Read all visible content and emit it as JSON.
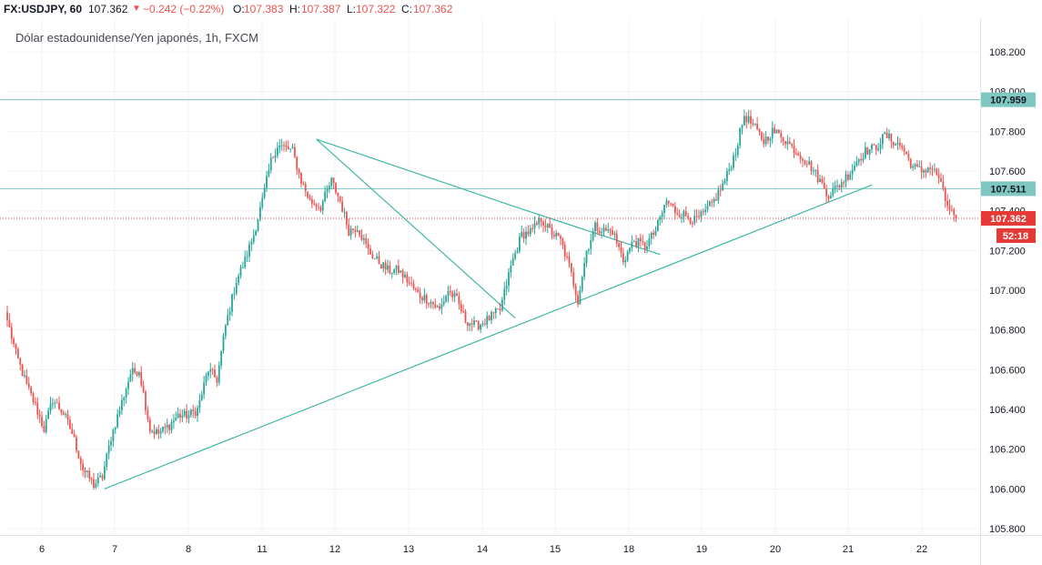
{
  "header": {
    "symbol": "FX:USDJPY, 60",
    "last": "107.362",
    "arrow": "▼",
    "change": "−0.242 (−0.22%)",
    "o_label": "O:",
    "o_value": "107.383",
    "h_label": "H:",
    "h_value": "107.387",
    "l_label": "L:",
    "l_value": "107.322",
    "c_label": "C:",
    "c_value": "107.362"
  },
  "colors": {
    "up": "#26a69a",
    "down": "#ef5350",
    "hline": "#7fc7c1",
    "trend": "#41b6a6",
    "price_line": "#e53935"
  },
  "chart_data": {
    "type": "candlestick",
    "title": "Dólar estadounidense/Yen japonés, 1h, FXCM",
    "x_tick_labels": [
      "6",
      "7",
      "8",
      "11",
      "12",
      "13",
      "14",
      "15",
      "18",
      "19",
      "20",
      "21",
      "22"
    ],
    "y_tick_labels": [
      "105.800",
      "106.000",
      "106.200",
      "106.400",
      "106.600",
      "106.800",
      "107.000",
      "107.200",
      "107.400",
      "107.600",
      "107.800",
      "108.000",
      "108.200"
    ],
    "ylim": [
      105.78,
      108.27
    ],
    "grid": true,
    "close_anchors": [
      [
        0,
        106.85
      ],
      [
        4,
        106.68
      ],
      [
        9,
        106.52
      ],
      [
        13,
        106.42
      ],
      [
        17,
        106.3
      ],
      [
        21,
        106.45
      ],
      [
        26,
        106.38
      ],
      [
        30,
        106.28
      ],
      [
        35,
        106.1
      ],
      [
        40,
        106.02
      ],
      [
        44,
        106.06
      ],
      [
        48,
        106.26
      ],
      [
        52,
        106.4
      ],
      [
        57,
        106.58
      ],
      [
        61,
        106.6
      ],
      [
        66,
        106.3
      ],
      [
        70,
        106.28
      ],
      [
        75,
        106.32
      ],
      [
        79,
        106.37
      ],
      [
        84,
        106.37
      ],
      [
        88,
        106.4
      ],
      [
        93,
        106.6
      ],
      [
        97,
        106.55
      ],
      [
        101,
        106.82
      ],
      [
        106,
        107.05
      ],
      [
        110,
        107.15
      ],
      [
        114,
        107.28
      ],
      [
        118,
        107.45
      ],
      [
        122,
        107.65
      ],
      [
        125,
        107.73
      ],
      [
        128,
        107.72
      ],
      [
        132,
        107.7
      ],
      [
        136,
        107.55
      ],
      [
        140,
        107.45
      ],
      [
        145,
        107.42
      ],
      [
        150,
        107.55
      ],
      [
        154,
        107.45
      ],
      [
        158,
        107.3
      ],
      [
        162,
        107.32
      ],
      [
        167,
        107.2
      ],
      [
        171,
        107.15
      ],
      [
        176,
        107.1
      ],
      [
        181,
        107.1
      ],
      [
        185,
        107.05
      ],
      [
        190,
        106.98
      ],
      [
        195,
        106.95
      ],
      [
        200,
        106.9
      ],
      [
        204,
        107.0
      ],
      [
        208,
        106.95
      ],
      [
        212,
        106.85
      ],
      [
        217,
        106.82
      ],
      [
        222,
        106.85
      ],
      [
        228,
        106.9
      ],
      [
        233,
        107.12
      ],
      [
        238,
        107.28
      ],
      [
        243,
        107.3
      ],
      [
        247,
        107.36
      ],
      [
        251,
        107.3
      ],
      [
        256,
        107.25
      ],
      [
        260,
        107.12
      ],
      [
        264,
        106.95
      ],
      [
        268,
        107.2
      ],
      [
        272,
        107.32
      ],
      [
        276,
        107.3
      ],
      [
        280,
        107.3
      ],
      [
        285,
        107.15
      ],
      [
        290,
        107.25
      ],
      [
        295,
        107.22
      ],
      [
        300,
        107.3
      ],
      [
        305,
        107.45
      ],
      [
        309,
        107.4
      ],
      [
        313,
        107.38
      ],
      [
        318,
        107.35
      ],
      [
        322,
        107.38
      ],
      [
        327,
        107.45
      ],
      [
        332,
        107.55
      ],
      [
        337,
        107.7
      ],
      [
        341,
        107.88
      ],
      [
        345,
        107.83
      ],
      [
        350,
        107.75
      ],
      [
        354,
        107.8
      ],
      [
        358,
        107.78
      ],
      [
        363,
        107.72
      ],
      [
        367,
        107.68
      ],
      [
        372,
        107.62
      ],
      [
        376,
        107.55
      ],
      [
        380,
        107.48
      ],
      [
        384,
        107.52
      ],
      [
        389,
        107.58
      ],
      [
        393,
        107.65
      ],
      [
        397,
        107.7
      ],
      [
        402,
        107.72
      ],
      [
        406,
        107.78
      ],
      [
        410,
        107.75
      ],
      [
        414,
        107.72
      ],
      [
        419,
        107.62
      ],
      [
        423,
        107.6
      ],
      [
        427,
        107.62
      ],
      [
        431,
        107.57
      ],
      [
        434,
        107.45
      ],
      [
        437,
        107.39
      ],
      [
        439,
        107.36
      ]
    ],
    "horizontal_levels": [
      {
        "value": 107.959,
        "label": "107.959"
      },
      {
        "value": 107.511,
        "label": "107.511"
      }
    ],
    "last_price": {
      "value": 107.362,
      "label": "107.362",
      "countdown": "52:18"
    },
    "trendlines": [
      {
        "from": [
          45,
          106.0
        ],
        "to": [
          400,
          107.53
        ]
      },
      {
        "from": [
          143,
          107.76
        ],
        "to": [
          235,
          107.42
        ]
      },
      {
        "from": [
          235,
          107.42
        ],
        "to": [
          302,
          107.18
        ]
      },
      {
        "from": [
          143,
          107.76
        ],
        "to": [
          235,
          106.86
        ]
      }
    ]
  }
}
